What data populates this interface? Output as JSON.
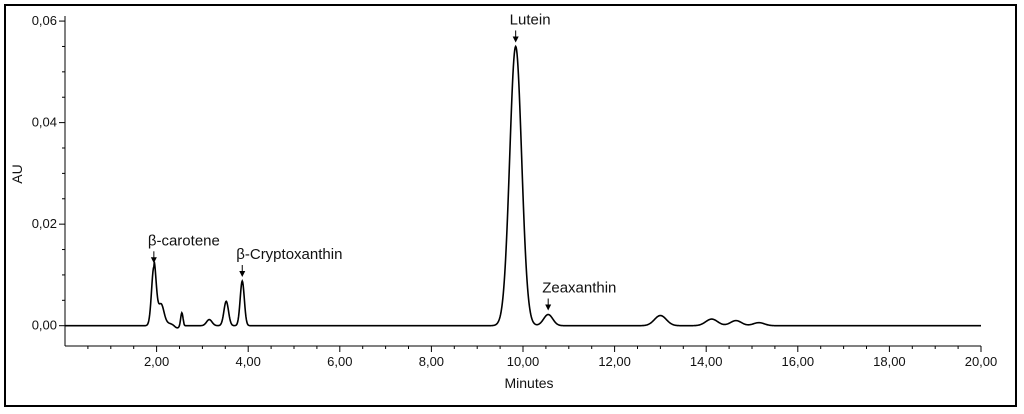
{
  "chart_data": {
    "type": "line",
    "xlabel": "Minutes",
    "ylabel": "AU",
    "xlim": [
      0,
      20
    ],
    "ylim": [
      -0.004,
      0.061
    ],
    "x_ticks": [
      2,
      4,
      6,
      8,
      10,
      12,
      14,
      16,
      18,
      20
    ],
    "x_tick_labels": [
      "2,00",
      "4,00",
      "6,00",
      "8,00",
      "10,00",
      "12,00",
      "14,00",
      "16,00",
      "18,00",
      "20,00"
    ],
    "y_ticks": [
      0,
      0.02,
      0.04,
      0.06
    ],
    "y_tick_labels": [
      "0,00",
      "0,02",
      "0,04",
      "0,06"
    ],
    "grid": false,
    "baseline": 0,
    "peaks": [
      {
        "rt": 1.94,
        "height": 0.0115,
        "width": 0.05
      },
      {
        "rt": 2.1,
        "height": 0.0035,
        "width": 0.06
      },
      {
        "rt": 2.55,
        "height": 0.0025,
        "width": 0.025
      },
      {
        "rt": 3.15,
        "height": 0.0012,
        "width": 0.06
      },
      {
        "rt": 3.52,
        "height": 0.0048,
        "width": 0.05
      },
      {
        "rt": 3.87,
        "height": 0.0088,
        "width": 0.045
      },
      {
        "rt": 9.84,
        "height": 0.055,
        "width": 0.13
      },
      {
        "rt": 10.55,
        "height": 0.0022,
        "width": 0.1
      },
      {
        "rt": 13.0,
        "height": 0.002,
        "width": 0.13
      },
      {
        "rt": 14.12,
        "height": 0.0013,
        "width": 0.13
      },
      {
        "rt": 14.65,
        "height": 0.001,
        "width": 0.12
      },
      {
        "rt": 15.15,
        "height": 0.0006,
        "width": 0.12
      }
    ],
    "dips": [
      {
        "rt": 2.45,
        "depth": 0.0007,
        "width": 0.06
      }
    ],
    "annotations": [
      {
        "label": "β-carotene",
        "x": 1.94,
        "y": 0.0115
      },
      {
        "label": "β-Cryptoxanthin",
        "x": 3.87,
        "y": 0.0088
      },
      {
        "label": "Lutein",
        "x": 9.84,
        "y": 0.055
      },
      {
        "label": "Zeaxanthin",
        "x": 10.55,
        "y": 0.0022
      }
    ]
  }
}
